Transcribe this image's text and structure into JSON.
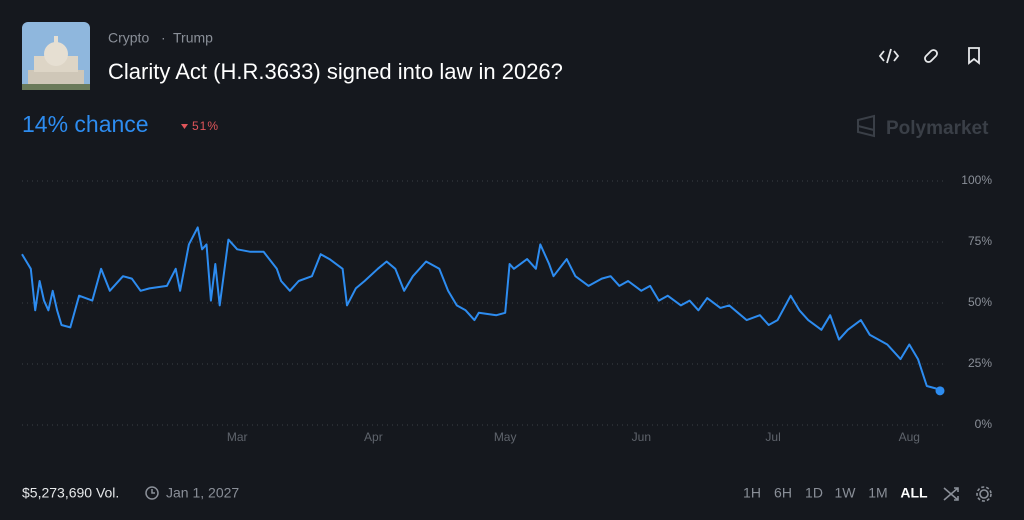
{
  "header": {
    "breadcrumb": [
      "Crypto",
      "Trump"
    ],
    "separator": "·",
    "title": "Clarity Act (H.R.3633) signed into law in 2026?",
    "chance": "14% chance",
    "change": "51%",
    "brand": "Polymarket"
  },
  "chart_data": {
    "type": "line",
    "color": "#2d8cf0",
    "grid": true,
    "x": [
      11,
      12,
      13,
      14,
      15,
      16,
      17,
      18,
      19,
      20,
      22,
      24,
      27,
      29,
      31,
      34,
      36,
      38,
      40,
      44,
      46,
      47,
      49,
      51,
      52,
      53,
      54,
      55,
      56,
      58,
      60,
      63,
      66,
      69,
      70,
      72,
      74,
      77,
      79,
      81,
      84,
      85,
      87,
      89,
      92,
      94,
      96,
      98,
      100,
      103,
      106,
      108,
      110,
      112,
      114,
      115,
      119,
      121,
      122,
      123,
      126,
      128,
      129,
      131,
      132,
      135,
      137,
      140,
      143,
      145,
      147,
      149,
      152,
      154,
      156,
      158,
      161,
      163,
      165,
      167,
      170,
      172,
      174,
      176,
      179,
      181,
      183,
      186,
      188,
      190,
      193,
      195,
      197,
      199,
      202,
      204,
      206,
      208,
      211,
      213,
      215,
      217,
      219,
      220
    ],
    "values": [
      70,
      67,
      64,
      47,
      59,
      51,
      47,
      55,
      47,
      41,
      40,
      53,
      51,
      64,
      55,
      61,
      60,
      55,
      56,
      57,
      64,
      55,
      74,
      81,
      72,
      74,
      51,
      66,
      49,
      76,
      72,
      71,
      71,
      64,
      59,
      55,
      59,
      61,
      70,
      68,
      64,
      49,
      56,
      59,
      64,
      67,
      64,
      55,
      61,
      67,
      64,
      55,
      49,
      47,
      43,
      46,
      45,
      46,
      66,
      64,
      68,
      64,
      74,
      66,
      61,
      68,
      61,
      57,
      60,
      61,
      57,
      59,
      55,
      57,
      51,
      53,
      49,
      51,
      47,
      52,
      48,
      49,
      46,
      43,
      45,
      41,
      43,
      53,
      47,
      43,
      39,
      45,
      35,
      39,
      43,
      37,
      35,
      33,
      27,
      33,
      27,
      16,
      15,
      14
    ],
    "xlim": [
      11,
      220
    ],
    "xticks": [
      {
        "value": 60,
        "label": "Mar"
      },
      {
        "value": 91,
        "label": "Apr"
      },
      {
        "value": 121,
        "label": "May"
      },
      {
        "value": 152,
        "label": "Jun"
      },
      {
        "value": 182,
        "label": "Jul"
      },
      {
        "value": 213,
        "label": "Aug"
      }
    ],
    "ylim": [
      0,
      100
    ],
    "yticks": [
      {
        "value": 0,
        "label": "0%"
      },
      {
        "value": 25,
        "label": "25%"
      },
      {
        "value": 50,
        "label": "50%"
      },
      {
        "value": 75,
        "label": "75%"
      },
      {
        "value": 100,
        "label": "100%"
      }
    ]
  },
  "footer": {
    "volume": "$5,273,690 Vol.",
    "end_date": "Jan 1, 2027",
    "ranges": [
      "1H",
      "6H",
      "1D",
      "1W",
      "1M",
      "ALL"
    ],
    "active_range": "ALL"
  }
}
